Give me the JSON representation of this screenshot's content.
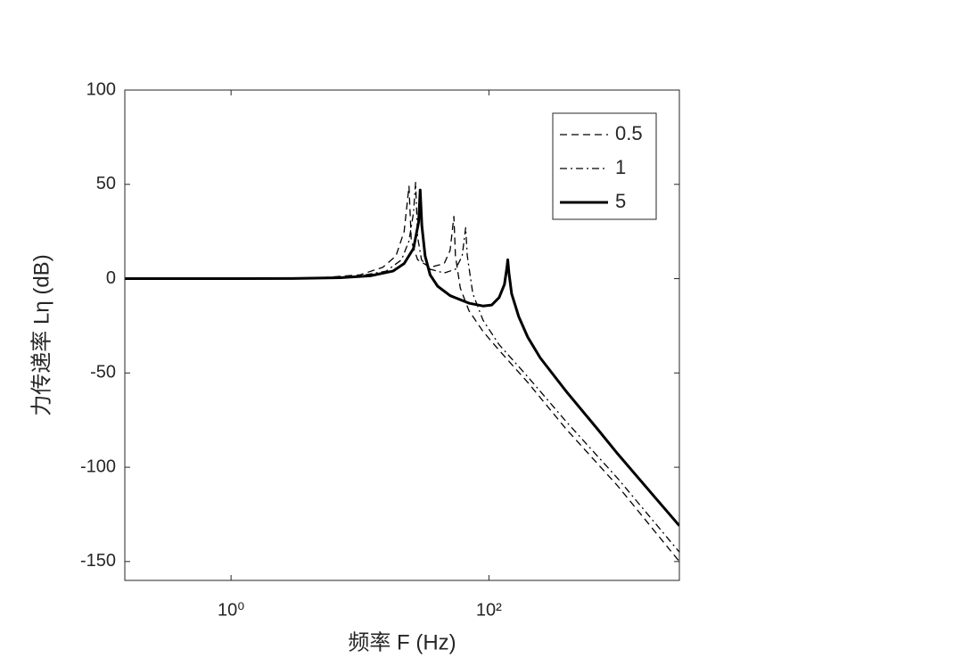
{
  "chart_data": {
    "type": "line",
    "xlabel": "频率 F (Hz)",
    "ylabel": "力传递率 Lη (dB)",
    "xscale": "log",
    "xlim": [
      0.15,
      3000
    ],
    "ylim": [
      -160,
      100
    ],
    "xticks": [
      {
        "value": 1,
        "label": "10⁰"
      },
      {
        "value": 100,
        "label": "10²"
      }
    ],
    "yticks": [
      100,
      50,
      0,
      -50,
      -100,
      -150
    ],
    "legend": "upper right",
    "series": [
      {
        "name": "0.5",
        "color": "#000000",
        "dash": "dashed",
        "width": 1.3,
        "x": [
          0.15,
          1,
          5,
          10,
          15,
          19,
          22,
          24,
          25,
          28,
          35,
          45,
          50,
          53.5,
          55,
          60,
          70,
          90,
          120,
          200,
          400,
          1000,
          3000
        ],
        "values": [
          0,
          0,
          0.5,
          2,
          6,
          12,
          25,
          49,
          20,
          10,
          6,
          8,
          15,
          33,
          12,
          -5,
          -17,
          -28,
          -38,
          -55,
          -80,
          -110,
          -150
        ]
      },
      {
        "name": "1",
        "color": "#000000",
        "dash": "dashdot",
        "width": 1.3,
        "x": [
          0.15,
          1,
          5,
          10,
          16,
          21,
          24,
          26,
          27,
          28,
          30,
          35,
          45,
          55,
          62,
          66,
          68,
          75,
          90,
          120,
          200,
          400,
          1000,
          3000
        ],
        "values": [
          0,
          0,
          0.3,
          1.5,
          4,
          10,
          20,
          35,
          51,
          22,
          10,
          5,
          3,
          5,
          12,
          27,
          12,
          -8,
          -22,
          -35,
          -52,
          -76,
          -106,
          -145
        ]
      },
      {
        "name": "5",
        "color": "#000000",
        "dash": "solid",
        "width": 3,
        "x": [
          0.15,
          1,
          3,
          7,
          12,
          18,
          22,
          26,
          28.5,
          29.3,
          30.2,
          32,
          35,
          40,
          50,
          70,
          90,
          105,
          120,
          132,
          138,
          140,
          143,
          150,
          170,
          200,
          250,
          400,
          700,
          1000,
          2000,
          3000
        ],
        "values": [
          0,
          0,
          0.1,
          0.5,
          1.5,
          4,
          8,
          16,
          30,
          47,
          28,
          12,
          2,
          -4,
          -9,
          -13,
          -14.5,
          -14,
          -10,
          -3,
          6,
          10,
          3,
          -8,
          -20,
          -31,
          -42,
          -60,
          -80,
          -93,
          -117,
          -131
        ]
      }
    ]
  }
}
